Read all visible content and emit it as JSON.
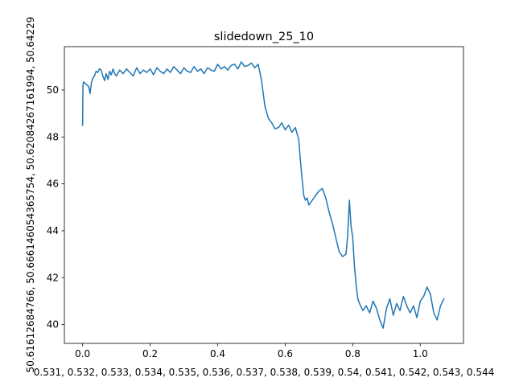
{
  "chart_data": {
    "type": "line",
    "title": "slidedown_25_10",
    "xlabel": "0.531, 0.532, 0.533, 0.534, 0.535, 0.536, 0.537, 0.538, 0.539, 0.54, 0.541, 0.542, 0.543, 0.544",
    "ylabel": "50.61612684766, 50.66614605436575‌4, 50.62084267161994, 50.64229",
    "xlim": [
      -0.054,
      1.128
    ],
    "ylim": [
      39.2,
      51.85
    ],
    "x_ticks": [
      0.0,
      0.2,
      0.4,
      0.6,
      0.8,
      1.0
    ],
    "x_tick_labels": [
      "0.0",
      "0.2",
      "0.4",
      "0.6",
      "0.8",
      "1.0"
    ],
    "y_ticks": [
      40,
      42,
      44,
      46,
      48,
      50
    ],
    "y_tick_labels": [
      "40",
      "42",
      "44",
      "46",
      "48",
      "50"
    ],
    "grid": false,
    "color": "#1f77b4",
    "series": [
      {
        "x": [
          0.0,
          0.001,
          0.003,
          0.006,
          0.01,
          0.014,
          0.018,
          0.022,
          0.026,
          0.03,
          0.035,
          0.04,
          0.045,
          0.05,
          0.055,
          0.06,
          0.065,
          0.07,
          0.075,
          0.08,
          0.085,
          0.09,
          0.095,
          0.1,
          0.11,
          0.12,
          0.13,
          0.14,
          0.15,
          0.16,
          0.17,
          0.18,
          0.19,
          0.2,
          0.21,
          0.22,
          0.23,
          0.24,
          0.25,
          0.26,
          0.27,
          0.28,
          0.29,
          0.3,
          0.31,
          0.32,
          0.33,
          0.34,
          0.35,
          0.36,
          0.37,
          0.38,
          0.39,
          0.4,
          0.41,
          0.42,
          0.43,
          0.44,
          0.45,
          0.46,
          0.47,
          0.48,
          0.49,
          0.5,
          0.51,
          0.52,
          0.53,
          0.54,
          0.55,
          0.56,
          0.57,
          0.58,
          0.59,
          0.6,
          0.61,
          0.62,
          0.63,
          0.64,
          0.645,
          0.65,
          0.655,
          0.66,
          0.665,
          0.67,
          0.68,
          0.69,
          0.7,
          0.71,
          0.72,
          0.73,
          0.74,
          0.75,
          0.76,
          0.77,
          0.78,
          0.785,
          0.79,
          0.795,
          0.8,
          0.805,
          0.81,
          0.815,
          0.82,
          0.83,
          0.84,
          0.85,
          0.86,
          0.87,
          0.88,
          0.89,
          0.9,
          0.91,
          0.92,
          0.93,
          0.94,
          0.95,
          0.96,
          0.97,
          0.98,
          0.99,
          1.0,
          1.01,
          1.02,
          1.03,
          1.04,
          1.05,
          1.06,
          1.07
        ],
        "y": [
          48.5,
          50.2,
          50.35,
          50.3,
          50.25,
          50.2,
          50.15,
          49.85,
          50.3,
          50.5,
          50.6,
          50.8,
          50.75,
          50.9,
          50.85,
          50.6,
          50.4,
          50.7,
          50.45,
          50.8,
          50.65,
          50.9,
          50.7,
          50.6,
          50.85,
          50.7,
          50.9,
          50.75,
          50.6,
          50.95,
          50.7,
          50.85,
          50.75,
          50.9,
          50.65,
          50.95,
          50.8,
          50.7,
          50.9,
          50.75,
          51.0,
          50.85,
          50.7,
          50.95,
          50.8,
          50.75,
          51.0,
          50.8,
          50.9,
          50.7,
          50.95,
          50.85,
          50.8,
          51.1,
          50.9,
          51.0,
          50.85,
          51.05,
          51.1,
          50.9,
          51.2,
          51.0,
          51.05,
          51.15,
          50.95,
          51.1,
          50.4,
          49.3,
          48.8,
          48.6,
          48.35,
          48.4,
          48.6,
          48.3,
          48.5,
          48.2,
          48.4,
          47.9,
          47.0,
          46.2,
          45.5,
          45.3,
          45.4,
          45.1,
          45.3,
          45.5,
          45.7,
          45.8,
          45.4,
          44.8,
          44.3,
          43.7,
          43.1,
          42.9,
          43.0,
          43.8,
          45.3,
          44.2,
          43.7,
          42.5,
          41.7,
          41.1,
          40.9,
          40.6,
          40.8,
          40.5,
          41.0,
          40.7,
          40.2,
          39.85,
          40.7,
          41.1,
          40.4,
          40.9,
          40.6,
          41.2,
          40.8,
          40.5,
          40.8,
          40.3,
          41.0,
          41.2,
          41.6,
          41.3,
          40.5,
          40.2,
          40.8,
          41.1
        ]
      }
    ]
  }
}
